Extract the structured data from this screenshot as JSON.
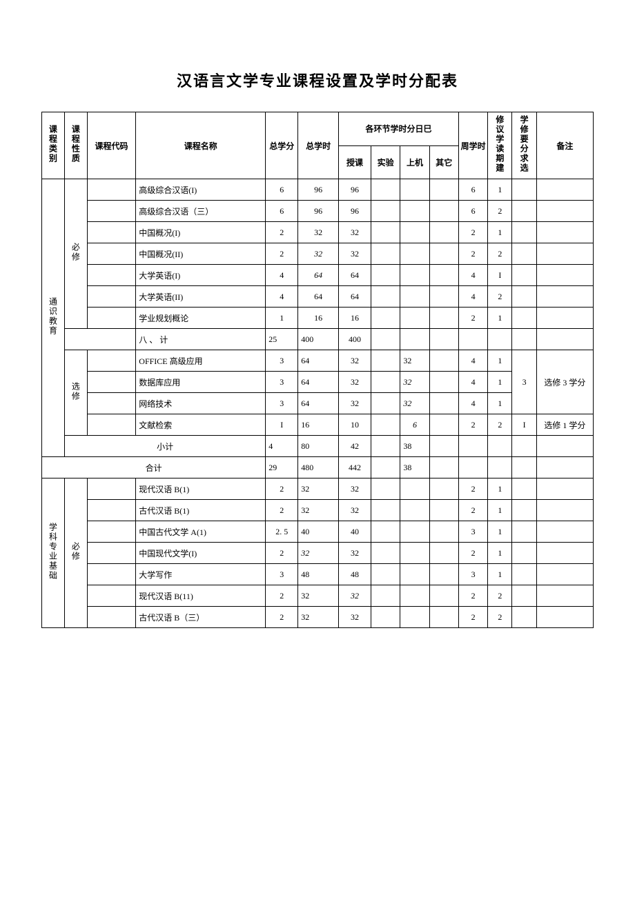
{
  "title": "汉语言文学专业课程设置及学时分配表",
  "head": {
    "cat": "课程类别",
    "nat": "课程性质",
    "code": "课程代码",
    "name": "课程名称",
    "credit": "总学分",
    "hours": "总学时",
    "segHead": "各环节学时分日巳",
    "lec": "授课",
    "exp": "实验",
    "comp": "上机",
    "other": "其它",
    "week": "周学时",
    "sem": "修议学读期建",
    "req": "学修要分求选",
    "note": "备注"
  },
  "cat1": "通识教育",
  "cat2": "学科专业基础",
  "nat_req": "必修",
  "nat_elec": "选修",
  "subtotal": "小 计",
  "subtotal2": "小计",
  "total": "合计",
  "rows": {
    "r1": {
      "name": "高级综合汉语(I)",
      "credit": "6",
      "hours": "96",
      "lec": "96",
      "exp": "",
      "comp": "",
      "other": "",
      "week": "6",
      "sem": "1",
      "req": "",
      "note": ""
    },
    "r2": {
      "name": "高级综合汉语（三）",
      "credit": "6",
      "hours": "96",
      "lec": "96",
      "exp": "",
      "comp": "",
      "other": "",
      "week": "6",
      "sem": "2",
      "req": "",
      "note": ""
    },
    "r3": {
      "name": "中国概况(I)",
      "credit": "2",
      "hours": "32",
      "lec": "32",
      "exp": "",
      "comp": "",
      "other": "",
      "week": "2",
      "sem": "1",
      "req": "",
      "note": ""
    },
    "r4": {
      "name": "中国概况(II)",
      "credit": "2",
      "hours": "32",
      "hoursItalic": true,
      "lec": "32",
      "exp": "",
      "comp": "",
      "other": "",
      "week": "2",
      "sem": "2",
      "req": "",
      "note": ""
    },
    "r5": {
      "name": "大学英语(I)",
      "credit": "4",
      "hours": "64",
      "hoursItalic": true,
      "lec": "64",
      "exp": "",
      "comp": "",
      "other": "",
      "week": "4",
      "sem": "I",
      "req": "",
      "note": ""
    },
    "r6": {
      "name": "大学英语(II)",
      "credit": "4",
      "hours": "64",
      "lec": "64",
      "exp": "",
      "comp": "",
      "other": "",
      "week": "4",
      "sem": "2",
      "req": "",
      "note": ""
    },
    "r7": {
      "name": "学业规划概论",
      "credit": "1",
      "hours": "16",
      "lec": "16",
      "exp": "",
      "comp": "",
      "other": "",
      "week": "2",
      "sem": "1",
      "req": "",
      "note": ""
    },
    "sub1": {
      "name": "八 、 计",
      "credit": "25",
      "hours": "400",
      "lec": "400",
      "exp": "",
      "comp": "",
      "other": "",
      "week": "",
      "sem": "",
      "req": "",
      "note": ""
    },
    "r8": {
      "name": "OFFICE 高级应用",
      "credit": "3",
      "hours": "64",
      "lec": "32",
      "exp": "",
      "comp": "32",
      "other": "",
      "week": "4",
      "sem": "1",
      "req": "",
      "note": ""
    },
    "r9": {
      "name": "数据库应用",
      "credit": "3",
      "hours": "64",
      "lec": "32",
      "exp": "",
      "comp": "32",
      "compItalic": true,
      "other": "",
      "week": "4",
      "sem": "1",
      "note": "选修 3 学分",
      "req": "3"
    },
    "r10": {
      "name": "网络技术",
      "credit": "3",
      "hours": "64",
      "lec": "32",
      "exp": "",
      "comp": "32",
      "compItalic": true,
      "other": "",
      "week": "4",
      "sem": "1",
      "req": "",
      "note": ""
    },
    "r11": {
      "name": "文献检索",
      "credit": "I",
      "hours": "16",
      "lec": "10",
      "exp": "",
      "comp": "6",
      "compItalic": true,
      "other": "",
      "week": "2",
      "sem": "2",
      "req": "I",
      "note": "选修 1 学分"
    },
    "sub2": {
      "credit": "4",
      "hours": "80",
      "lec": "42",
      "exp": "",
      "comp": "38",
      "other": "",
      "week": "",
      "sem": "",
      "req": "",
      "note": ""
    },
    "tot": {
      "credit": "29",
      "hours": "480",
      "lec": "442",
      "exp": "",
      "comp": "38",
      "other": "",
      "week": "",
      "sem": "",
      "req": "",
      "note": ""
    },
    "r12": {
      "name": "现代汉语 B(1)",
      "credit": "2",
      "hours": "32",
      "lec": "32",
      "exp": "",
      "comp": "",
      "other": "",
      "week": "2",
      "sem": "1",
      "req": "",
      "note": ""
    },
    "r13": {
      "name": "古代汉语 B(1)",
      "credit": "2",
      "hours": "32",
      "lec": "32",
      "exp": "",
      "comp": "",
      "other": "",
      "week": "2",
      "sem": "1",
      "req": "",
      "note": ""
    },
    "r14": {
      "name": "中国古代文学 A(1)",
      "credit": "2. 5",
      "hours": "40",
      "lec": "40",
      "exp": "",
      "comp": "",
      "other": "",
      "week": "3",
      "sem": "1",
      "req": "",
      "note": ""
    },
    "r15": {
      "name": "中国现代文学(I)",
      "credit": "2",
      "hours": "32",
      "hoursItalic": true,
      "lec": "32",
      "exp": "",
      "comp": "",
      "other": "",
      "week": "2",
      "sem": "1",
      "req": "",
      "note": ""
    },
    "r16": {
      "name": "大学写作",
      "credit": "3",
      "hours": "48",
      "lec": "48",
      "exp": "",
      "comp": "",
      "other": "",
      "week": "3",
      "sem": "1",
      "req": "",
      "note": ""
    },
    "r17": {
      "name": "现代汉语 B(11)",
      "credit": "2",
      "hours": "32",
      "lec": "32",
      "lecItalic": true,
      "exp": "",
      "comp": "",
      "other": "",
      "week": "2",
      "sem": "2",
      "req": "",
      "note": ""
    },
    "r18": {
      "name": "古代汉语 B（三）",
      "credit": "2",
      "hours": "32",
      "lec": "32",
      "exp": "",
      "comp": "",
      "other": "",
      "week": "2",
      "sem": "2",
      "req": "",
      "note": ""
    }
  }
}
